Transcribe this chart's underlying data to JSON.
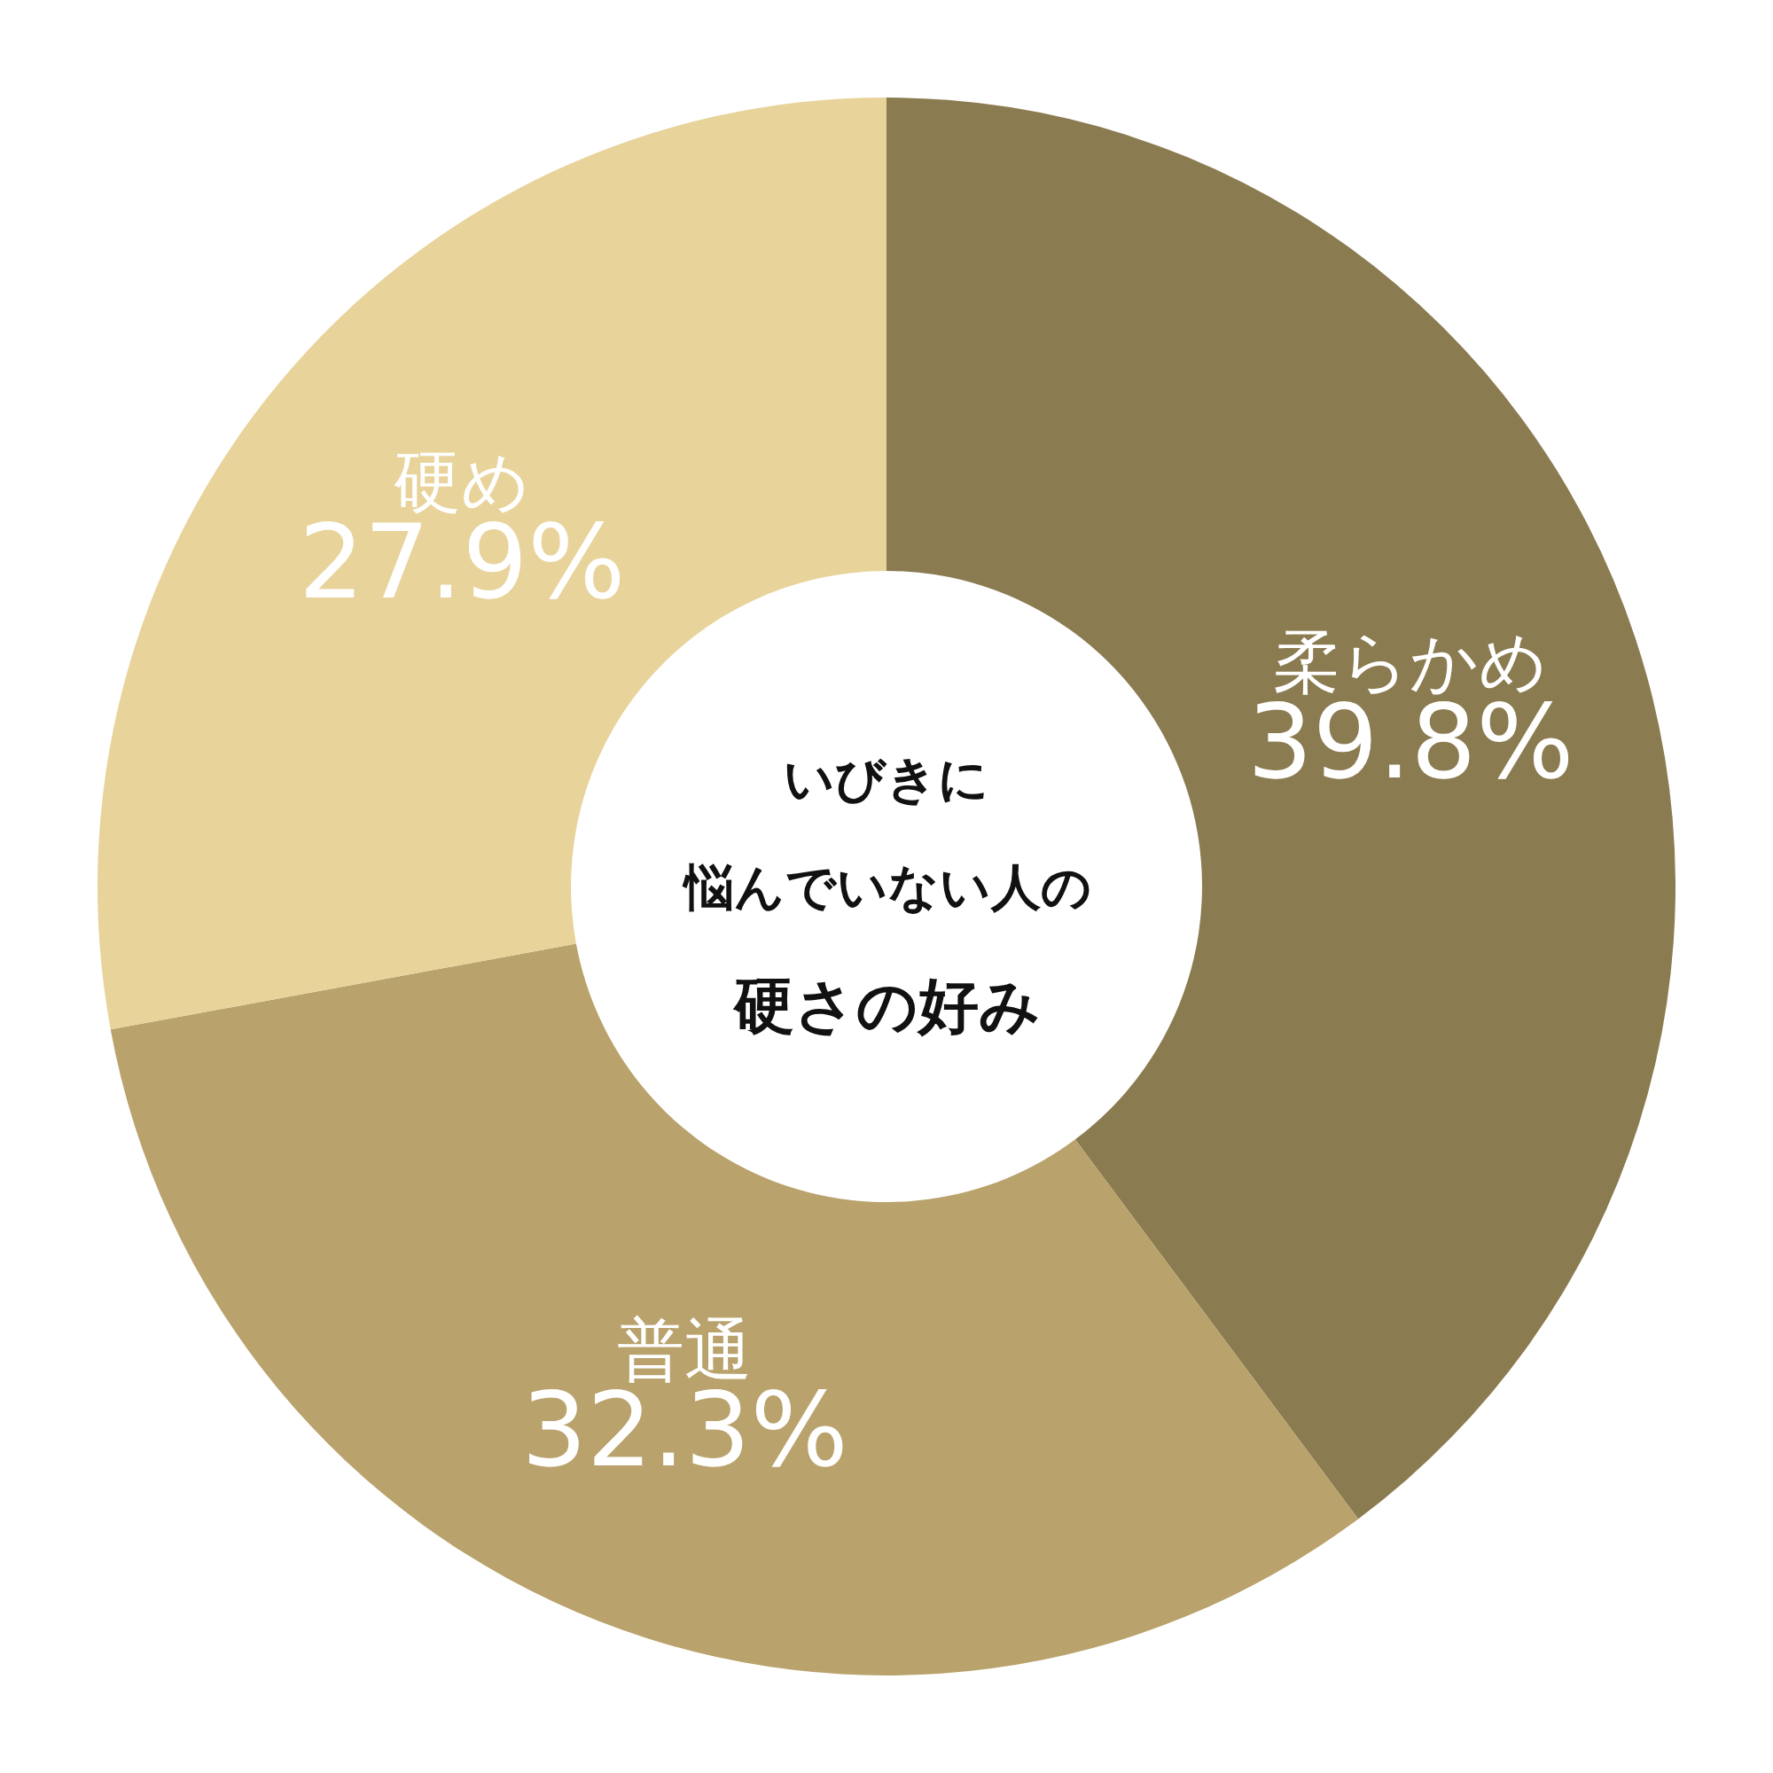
{
  "chart_data": {
    "type": "donut",
    "annotations": [
      "いびきに",
      "悩んでいない人の",
      "硬さの好み"
    ],
    "categories": [
      "柔らかめ",
      "普通",
      "硬め"
    ],
    "values": [
      39.8,
      32.3,
      27.9
    ],
    "value_labels": [
      "39.8%",
      "32.3%",
      "27.9%"
    ],
    "colors": [
      "#8b7b50",
      "#b9a26b",
      "#e8d39b"
    ],
    "legend": false
  }
}
